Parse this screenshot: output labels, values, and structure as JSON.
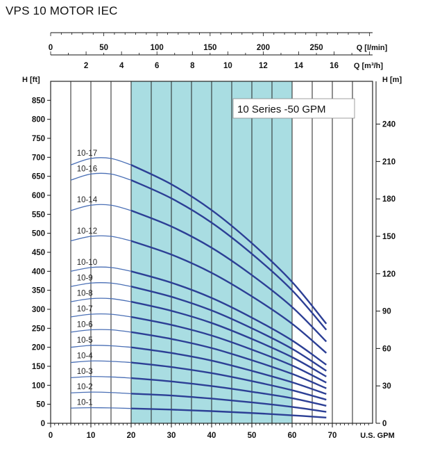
{
  "title": "VPS 10 MOTOR IEC",
  "colors": {
    "curve": "#2c3f95",
    "curve_stub": "#4a6fb5",
    "shaded_region": "#a9dde2",
    "grid": "#222222"
  },
  "chart_data": {
    "type": "line",
    "legend": "10 Series -50 GPM",
    "x_axis": {
      "label": "U.S. GPM",
      "range": [
        0,
        80
      ],
      "ticks": [
        0,
        10,
        20,
        30,
        40,
        50,
        60,
        70
      ],
      "tick_labels": [
        "0",
        "10",
        "20",
        "30",
        "40",
        "50",
        "60",
        "70"
      ]
    },
    "x_axis_top_lmin": {
      "label": "Q [l/min]",
      "ticks": [
        0,
        50,
        100,
        150,
        200,
        250
      ],
      "tick_labels": [
        "0",
        "50",
        "100",
        "150",
        "200",
        "250"
      ]
    },
    "x_axis_top_m3h": {
      "label": "Q [m³/h]",
      "ticks": [
        2,
        4,
        6,
        8,
        10,
        12,
        14,
        16
      ],
      "tick_labels": [
        "2",
        "4",
        "6",
        "8",
        "10",
        "12",
        "14",
        "16"
      ]
    },
    "y_axis_left": {
      "label": "H [ft]",
      "range": [
        0,
        900
      ],
      "ticks": [
        0,
        50,
        100,
        150,
        200,
        250,
        300,
        350,
        400,
        450,
        500,
        550,
        600,
        650,
        700,
        750,
        800,
        850
      ],
      "tick_labels": [
        "0",
        "50",
        "100",
        "150",
        "200",
        "250",
        "300",
        "350",
        "400",
        "450",
        "500",
        "550",
        "600",
        "650",
        "700",
        "750",
        "800",
        "850"
      ]
    },
    "y_axis_right": {
      "label": "H [m]",
      "ticks": [
        0,
        30,
        60,
        90,
        120,
        150,
        180,
        210,
        240
      ],
      "tick_labels": [
        "0",
        "30",
        "60",
        "90",
        "120",
        "150",
        "180",
        "210",
        "240"
      ]
    },
    "recommended_range_gpm": [
      20,
      60
    ],
    "series": [
      {
        "name": "10-1",
        "x": [
          5,
          10,
          15,
          20,
          30,
          40,
          50,
          60,
          68.5
        ],
        "y": [
          40,
          41,
          40.5,
          39,
          36,
          32,
          27,
          21,
          15
        ]
      },
      {
        "name": "10-2",
        "x": [
          5,
          10,
          15,
          20,
          30,
          40,
          50,
          60,
          68.5
        ],
        "y": [
          80,
          82,
          81,
          78,
          73,
          65,
          55,
          43,
          30
        ]
      },
      {
        "name": "10-3",
        "x": [
          5,
          10,
          15,
          20,
          30,
          40,
          50,
          60,
          68.5
        ],
        "y": [
          120,
          123,
          122,
          119,
          110,
          98,
          83,
          66,
          46
        ]
      },
      {
        "name": "10-4",
        "x": [
          5,
          10,
          15,
          20,
          30,
          40,
          50,
          60,
          68.5
        ],
        "y": [
          160,
          164,
          163,
          160,
          148,
          132,
          111,
          87,
          62
        ]
      },
      {
        "name": "10-5",
        "x": [
          5,
          10,
          15,
          20,
          30,
          40,
          50,
          60,
          68.5
        ],
        "y": [
          200,
          205,
          204,
          200,
          185,
          165,
          138,
          108,
          77
        ]
      },
      {
        "name": "10-6",
        "x": [
          5,
          10,
          15,
          20,
          30,
          40,
          50,
          60,
          68.5
        ],
        "y": [
          240,
          246,
          246,
          240,
          222,
          198,
          166,
          130,
          92
        ]
      },
      {
        "name": "10-7",
        "x": [
          5,
          10,
          15,
          20,
          30,
          40,
          50,
          60,
          68.5
        ],
        "y": [
          280,
          287,
          287,
          280,
          259,
          231,
          194,
          152,
          107
        ]
      },
      {
        "name": "10-8",
        "x": [
          5,
          10,
          15,
          20,
          30,
          40,
          50,
          60,
          68.5
        ],
        "y": [
          320,
          328,
          328,
          320,
          296,
          264,
          222,
          174,
          123
        ]
      },
      {
        "name": "10-9",
        "x": [
          5,
          10,
          15,
          20,
          30,
          40,
          50,
          60,
          68.5
        ],
        "y": [
          360,
          369,
          369,
          360,
          333,
          297,
          250,
          196,
          138
        ]
      },
      {
        "name": "10-10",
        "x": [
          5,
          10,
          15,
          20,
          30,
          40,
          50,
          60,
          68.5
        ],
        "y": [
          400,
          410,
          410,
          400,
          370,
          330,
          278,
          218,
          154
        ]
      },
      {
        "name": "10-12",
        "x": [
          5,
          10,
          15,
          20,
          30,
          40,
          50,
          60,
          68.5
        ],
        "y": [
          480,
          492,
          492,
          480,
          444,
          396,
          334,
          262,
          185
        ]
      },
      {
        "name": "10-14",
        "x": [
          5,
          10,
          15,
          20,
          30,
          40,
          50,
          60,
          68.5
        ],
        "y": [
          560,
          574,
          574,
          560,
          518,
          462,
          390,
          306,
          215
        ]
      },
      {
        "name": "10-16",
        "x": [
          5,
          10,
          15,
          20,
          30,
          40,
          50,
          60,
          68.5
        ],
        "y": [
          640,
          656,
          656,
          640,
          592,
          528,
          446,
          350,
          246
        ]
      },
      {
        "name": "10-17",
        "x": [
          5,
          10,
          15,
          20,
          30,
          40,
          50,
          60,
          68.5
        ],
        "y": [
          680,
          697,
          697,
          680,
          629,
          561,
          474,
          372,
          262
        ]
      }
    ]
  }
}
